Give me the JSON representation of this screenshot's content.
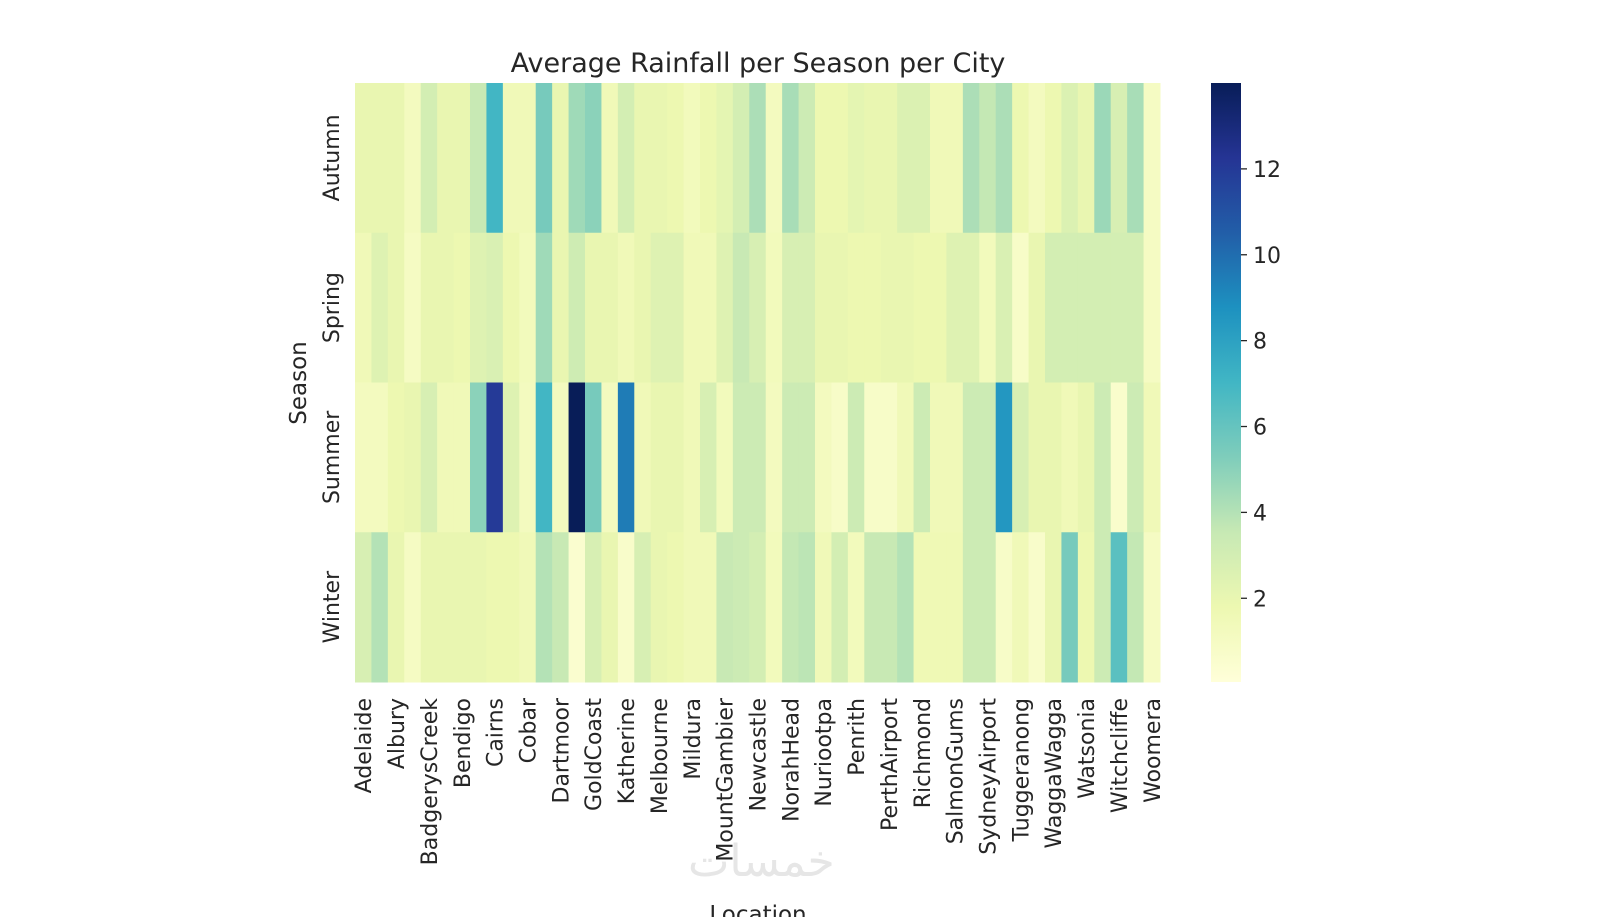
{
  "chart_data": {
    "type": "heatmap",
    "title": "Average Rainfall per Season per City",
    "xlabel": "Location",
    "ylabel": "Season",
    "rows": [
      "Autumn",
      "Spring",
      "Summer",
      "Winter"
    ],
    "x_tick_labels": [
      "Adelaide",
      "Albury",
      "BadgerysCreek",
      "Bendigo",
      "Cairns",
      "Cobar",
      "Dartmoor",
      "GoldCoast",
      "Katherine",
      "Melbourne",
      "Mildura",
      "MountGambier",
      "Newcastle",
      "NorahHead",
      "Nuriootpa",
      "Penrith",
      "PerthAirport",
      "Richmond",
      "SalmonGums",
      "SydneyAirport",
      "Tuggeranong",
      "WaggaWagga",
      "Watsonia",
      "Witchcliffe",
      "Woomera"
    ],
    "x_tick_every": 2,
    "column_count": 49,
    "values": [
      [
        2,
        2,
        2,
        1.2,
        3,
        2,
        2,
        3.5,
        7,
        1.5,
        1.5,
        5.5,
        2,
        4.5,
        5,
        1.5,
        3,
        2,
        2,
        1.8,
        1.3,
        1.8,
        2.2,
        3,
        4.2,
        1.2,
        4.3,
        3.3,
        1.8,
        1.8,
        2.2,
        2,
        2,
        2.6,
        2.6,
        1.5,
        1.5,
        4.2,
        3.6,
        4.2,
        1.8,
        1.2,
        1.8,
        2.6,
        2,
        4.6,
        2.8,
        4.3,
        1
      ],
      [
        1.5,
        2.5,
        2,
        1,
        2,
        2,
        1.8,
        2.5,
        2.7,
        1.8,
        1.3,
        4.5,
        2,
        3.2,
        2,
        2,
        1.5,
        2,
        2.5,
        2.5,
        1.5,
        1.5,
        2.5,
        3.5,
        2.8,
        1.3,
        2.8,
        2.8,
        2,
        2,
        1.8,
        1.8,
        2,
        2,
        1.8,
        1.8,
        2.5,
        2.5,
        1.3,
        2.7,
        0.8,
        2,
        3,
        3,
        3,
        3,
        3,
        3,
        1
      ],
      [
        1.2,
        1.2,
        1.8,
        2,
        2.8,
        1.5,
        1.5,
        5,
        12,
        2.5,
        1.2,
        7,
        1.2,
        14,
        5.5,
        1.2,
        9.5,
        1.5,
        2,
        2,
        1.5,
        2.8,
        1.3,
        3.3,
        3.3,
        1.2,
        3.3,
        3.3,
        1.2,
        0.8,
        3.3,
        0.8,
        0.8,
        1.5,
        3.3,
        1.5,
        1.5,
        3.3,
        3.3,
        8.5,
        2.8,
        2,
        2,
        1.5,
        2,
        3.3,
        0.6,
        3.3,
        1.5
      ],
      [
        2.8,
        4,
        2,
        1,
        2,
        2,
        2,
        2,
        1.8,
        1.8,
        1.5,
        4,
        3.5,
        0.5,
        2.8,
        2,
        0.7,
        2.8,
        2,
        1.8,
        1.5,
        1.5,
        3.5,
        3.3,
        3,
        1.3,
        3.6,
        3.8,
        1.5,
        3,
        1.3,
        3.5,
        3.5,
        4,
        1.6,
        1.6,
        1.6,
        3.3,
        3.3,
        0.8,
        1.5,
        0.7,
        2,
        5.5,
        1.8,
        3.3,
        6.3,
        3.6,
        1
      ]
    ],
    "colormap": "YlGnBu",
    "colormap_stops": [
      "#ffffd9",
      "#edf8b1",
      "#c7e9b4",
      "#7fcdbb",
      "#41b6c4",
      "#1d91c0",
      "#225ea8",
      "#253494",
      "#081d58"
    ],
    "vmin": 0.05,
    "vmax": 14,
    "colorbar_ticks": [
      2,
      4,
      6,
      8,
      10,
      12
    ],
    "grid": false
  },
  "watermark": "خمسات"
}
